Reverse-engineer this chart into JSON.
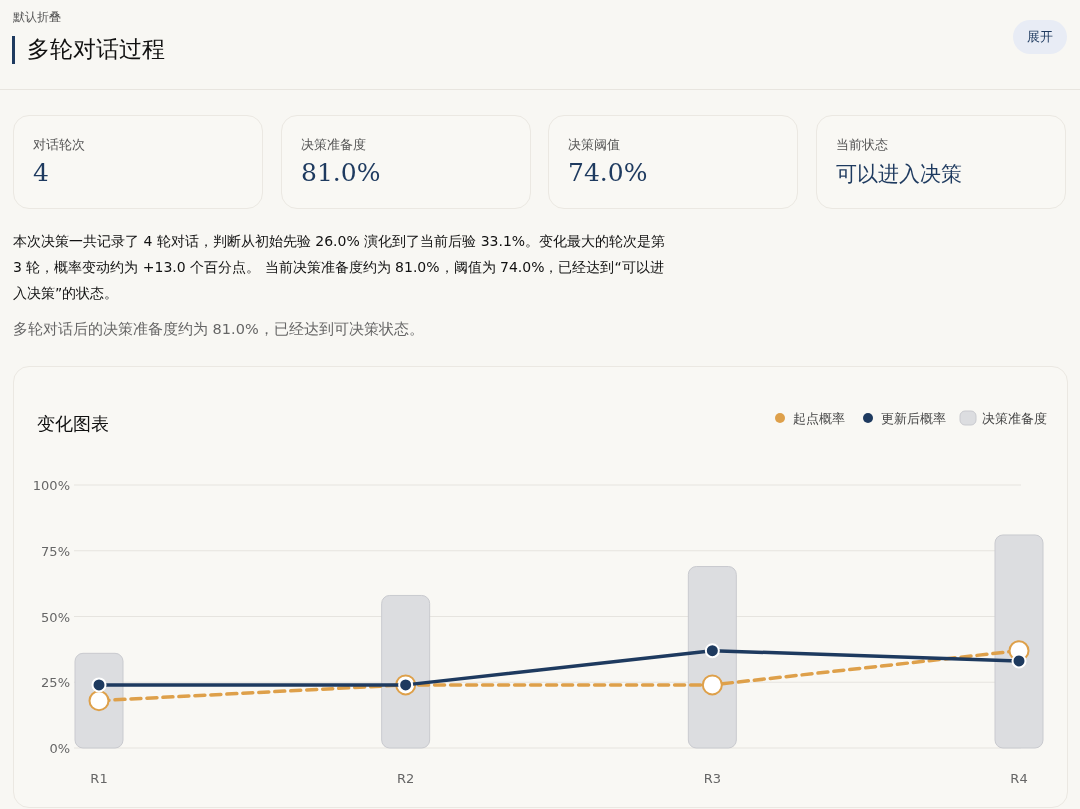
{
  "chart_data": [
    {
      "type": "other",
      "title": "多轮对话过程",
      "subtitle": "默认折叠",
      "annotations": [
        "展开",
        "对话轮次",
        "4",
        "决策准备度",
        "81.0%",
        "决策阈值",
        "74.0%",
        "当前状态",
        "可以进入决策",
        "本次决策一共记录了 4 轮对话，判断从初始先验 26.0% 演化到了当前后验 33.1%。变化最大的轮次是第 3 轮，概率变动约为 +13.0 个百分点。 当前决策准备度约为 81.0%，阈值为 74.0%，已经达到“可以进入决策”的状态。",
        "多轮对话后的决策准备度约为 81.0%，已经达到可决策状态。"
      ]
    },
    {
      "type": "bar",
      "title": "变化图表",
      "categories": [
        "R1",
        "R2",
        "R3",
        "R4"
      ],
      "series": [
        {
          "name": "决策准备度",
          "type": "bar",
          "color": "#dcdde0",
          "values": [
            36,
            58,
            69,
            81
          ]
        },
        {
          "name": "起点概率",
          "type": "line",
          "color": "#dea04a",
          "line_style": "dashed",
          "values": [
            18,
            24,
            24,
            37
          ]
        },
        {
          "name": "更新后概率",
          "type": "line",
          "color": "#1e3a5f",
          "line_style": "solid",
          "values": [
            24,
            24,
            37,
            33.1
          ]
        }
      ],
      "ylim": [
        0,
        100
      ],
      "yticks": [
        {
          "value": 0,
          "label": "0%"
        },
        {
          "value": 25,
          "label": "25%"
        },
        {
          "value": 50,
          "label": "50%"
        },
        {
          "value": 75,
          "label": "75%"
        },
        {
          "value": 100,
          "label": "100%"
        }
      ],
      "grid": "y",
      "legend": "top right",
      "marker": "circle"
    }
  ]
}
